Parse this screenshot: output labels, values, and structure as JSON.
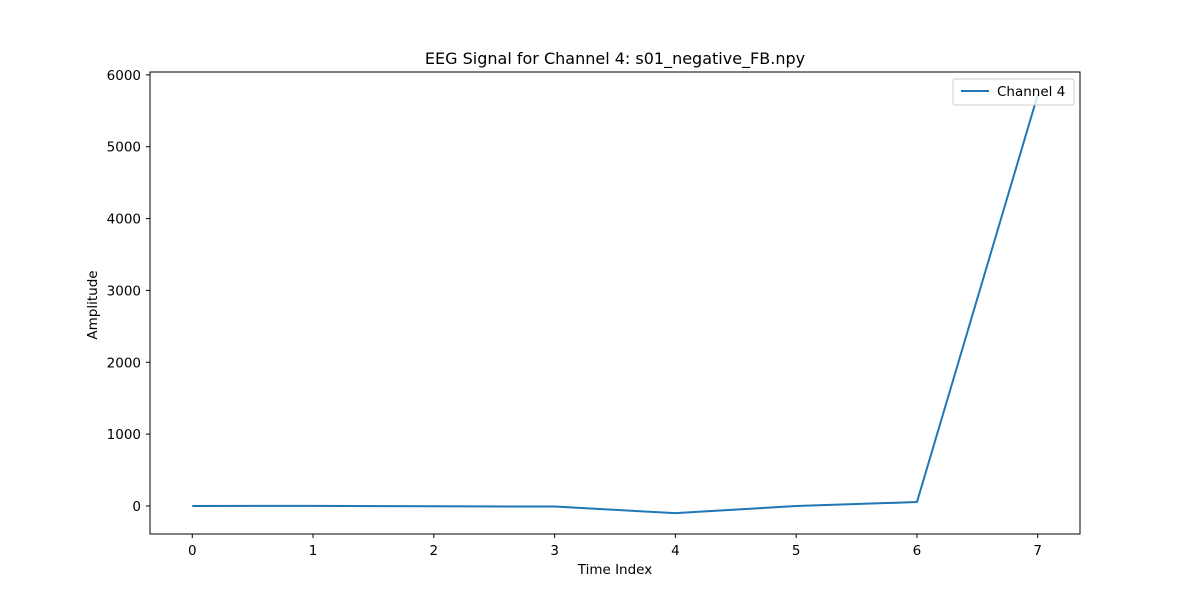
{
  "chart_data": {
    "type": "line",
    "title": "EEG Signal for Channel 4: s01_negative_FB.npy",
    "xlabel": "Time Index",
    "ylabel": "Amplitude",
    "x": [
      0,
      1,
      2,
      3,
      4,
      5,
      6,
      7
    ],
    "series": [
      {
        "name": "Channel 4",
        "color": "#1f77b4",
        "values": [
          0,
          2,
          -4,
          -8,
          -100,
          0,
          55,
          5720
        ]
      }
    ],
    "xlim": [
      -0.35,
      7.35
    ],
    "ylim": [
      -390,
      6040
    ],
    "xticks": [
      0,
      1,
      2,
      3,
      4,
      5,
      6,
      7
    ],
    "xtick_labels": [
      "0",
      "1",
      "2",
      "3",
      "4",
      "5",
      "6",
      "7"
    ],
    "yticks": [
      0,
      1000,
      2000,
      3000,
      4000,
      5000,
      6000
    ],
    "ytick_labels": [
      "0",
      "1000",
      "2000",
      "3000",
      "4000",
      "5000",
      "6000"
    ],
    "grid": false,
    "legend_position": "upper right"
  }
}
